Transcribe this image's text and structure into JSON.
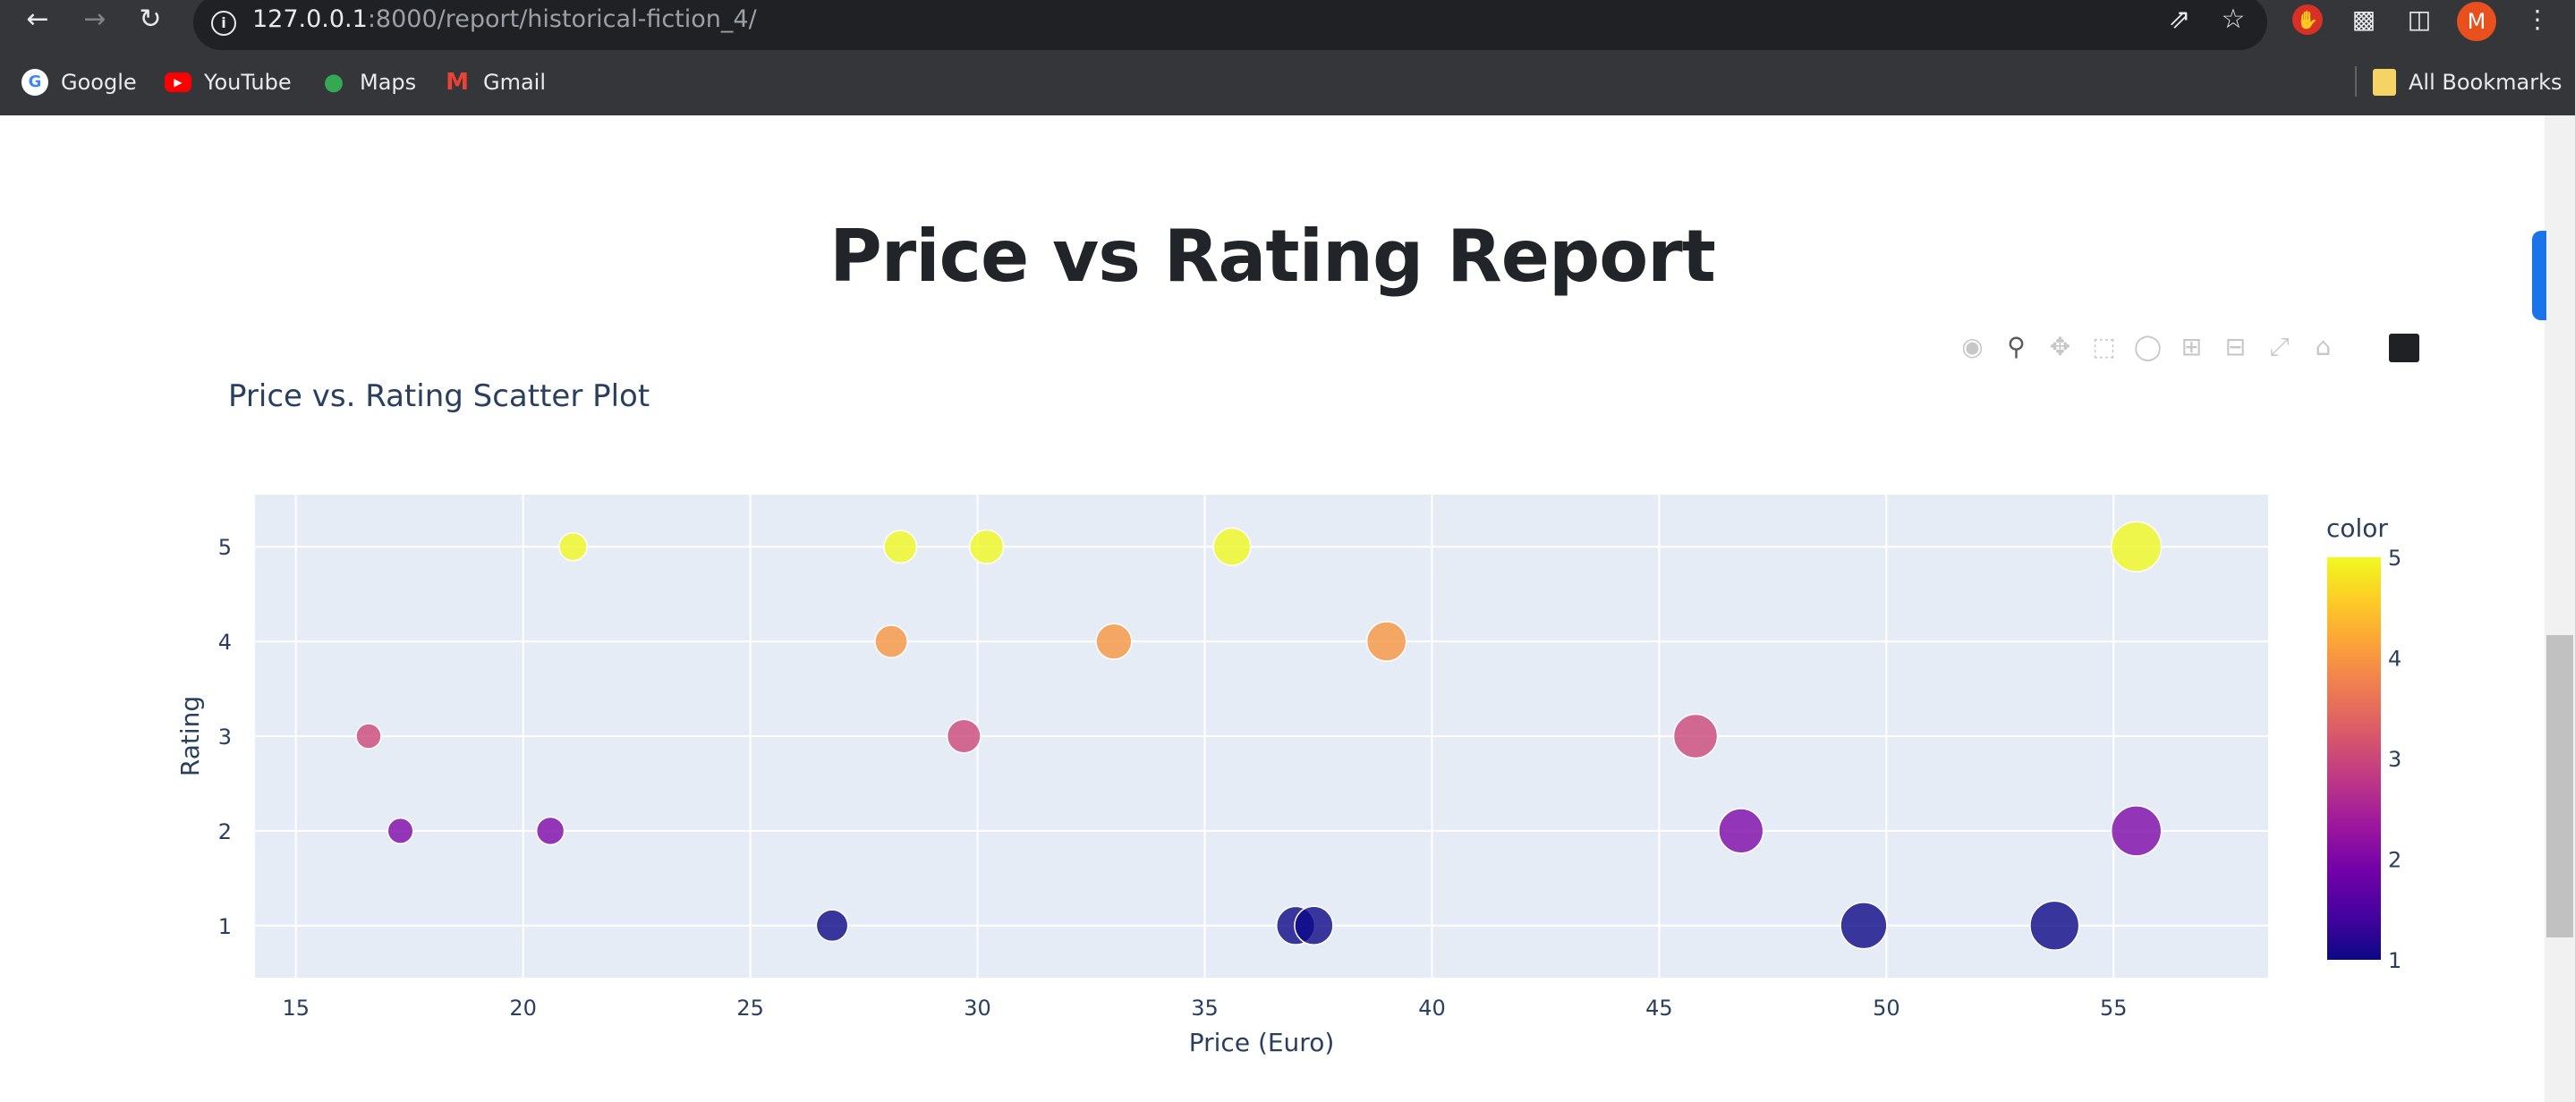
{
  "browser": {
    "url_host": "127.0.0.1",
    "url_port_path": ":8000/report/historical-fiction_4/",
    "avatar_letter": "M",
    "bookmarks": [
      {
        "label": "Google"
      },
      {
        "label": "YouTube"
      },
      {
        "label": "Maps"
      },
      {
        "label": "Gmail"
      }
    ],
    "all_bookmarks_label": "All Bookmarks"
  },
  "page": {
    "title": "Price vs Rating Report"
  },
  "chart_data": {
    "type": "scatter",
    "title": "Price vs. Rating Scatter Plot",
    "xlabel": "Price (Euro)",
    "ylabel": "Rating",
    "xlim": [
      14.1,
      58.4
    ],
    "ylim": [
      0.45,
      5.55
    ],
    "xticks": [
      15,
      20,
      25,
      30,
      35,
      40,
      45,
      50,
      55
    ],
    "yticks": [
      1,
      2,
      3,
      4,
      5
    ],
    "grid": true,
    "colorbar": {
      "title": "color",
      "ticks": [
        1,
        2,
        3,
        4,
        5
      ],
      "colorscale": [
        "#0d0887",
        "#46039f",
        "#7201a8",
        "#9c179e",
        "#bd3786",
        "#d8576b",
        "#ed7953",
        "#fb9f3a",
        "#fdca26",
        "#f0f921"
      ]
    },
    "points": [
      {
        "x": 21.1,
        "y": 5
      },
      {
        "x": 28.3,
        "y": 5
      },
      {
        "x": 30.2,
        "y": 5
      },
      {
        "x": 35.6,
        "y": 5
      },
      {
        "x": 55.5,
        "y": 5
      },
      {
        "x": 28.1,
        "y": 4
      },
      {
        "x": 33.0,
        "y": 4
      },
      {
        "x": 39.0,
        "y": 4
      },
      {
        "x": 16.6,
        "y": 3
      },
      {
        "x": 29.7,
        "y": 3
      },
      {
        "x": 45.8,
        "y": 3
      },
      {
        "x": 17.3,
        "y": 2
      },
      {
        "x": 20.6,
        "y": 2
      },
      {
        "x": 46.8,
        "y": 2
      },
      {
        "x": 55.5,
        "y": 2
      },
      {
        "x": 26.8,
        "y": 1
      },
      {
        "x": 37.0,
        "y": 1
      },
      {
        "x": 37.4,
        "y": 1
      },
      {
        "x": 49.5,
        "y": 1
      },
      {
        "x": 53.7,
        "y": 1
      }
    ]
  }
}
